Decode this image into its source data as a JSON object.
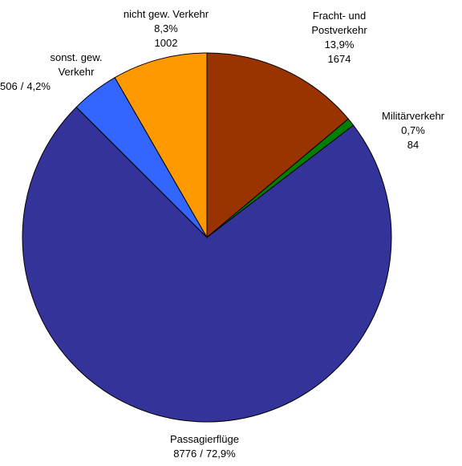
{
  "chart_data": {
    "type": "pie",
    "categories": [
      "Fracht- und Postverkehr",
      "Militärverkehr",
      "Passagierflüge",
      "sonst. gew. Verkehr",
      "nicht gew. Verkehr"
    ],
    "values": [
      1674,
      84,
      8776,
      506,
      1002
    ],
    "shares": [
      13.9,
      0.7,
      72.9,
      4.2,
      8.3
    ],
    "share_labels": [
      "13,9%",
      "0,7%",
      "72,9%",
      "4,2%",
      "8,3%"
    ],
    "label_separator": "/",
    "colors": [
      "#993300",
      "#008000",
      "#333399",
      "#3366ff",
      "#ff9900"
    ],
    "start": "top",
    "direction": "clockwise"
  }
}
